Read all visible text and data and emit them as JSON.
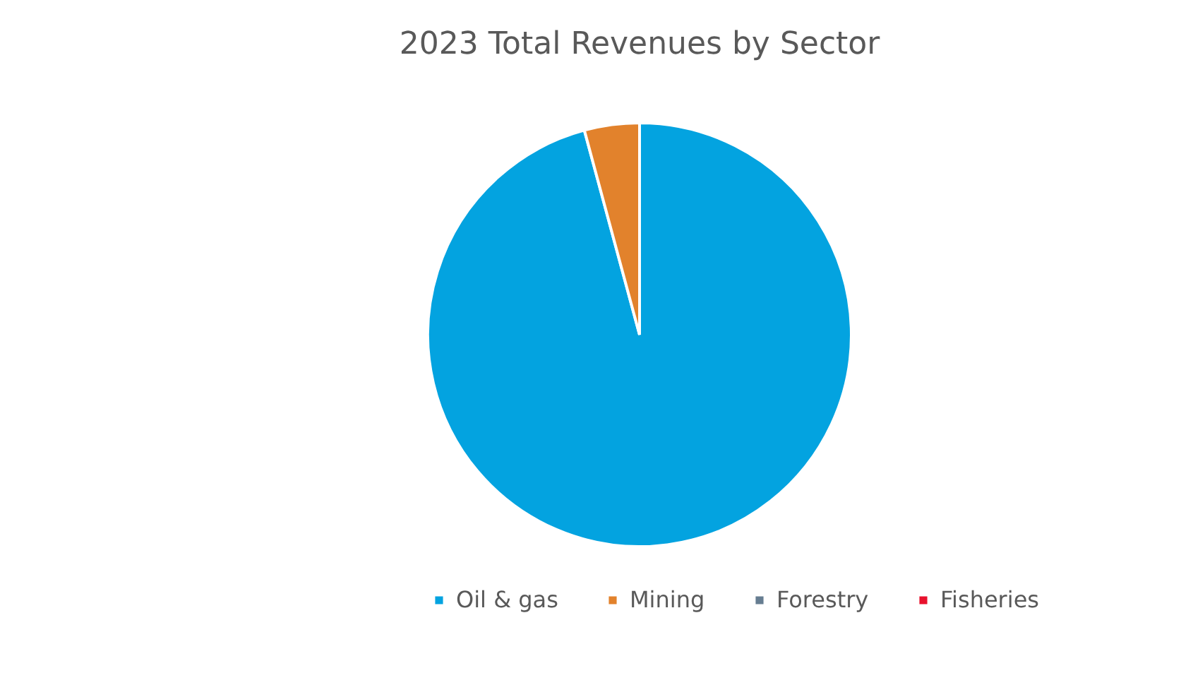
{
  "chart_data": {
    "type": "pie",
    "title": "2023 Total Revenues by Sector",
    "categories": [
      "Oil & gas",
      "Mining",
      "Forestry",
      "Fisheries"
    ],
    "values": [
      95.8,
      4.2,
      0,
      0
    ],
    "colors": [
      "#03a3e0",
      "#e2822c",
      "#667d91",
      "#e8112d"
    ],
    "legend": "bottom"
  }
}
